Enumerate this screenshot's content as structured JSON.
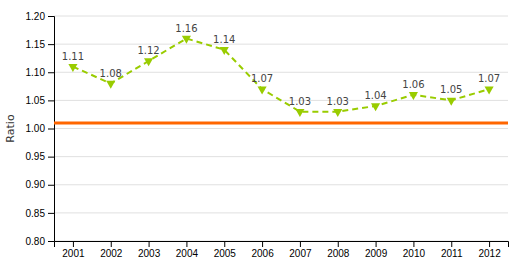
{
  "chart_data": {
    "type": "line",
    "ylabel": "Ratio",
    "x": [
      2001,
      2002,
      2003,
      2004,
      2005,
      2006,
      2007,
      2008,
      2009,
      2010,
      2011,
      2012
    ],
    "values": [
      1.11,
      1.08,
      1.12,
      1.16,
      1.14,
      1.07,
      1.03,
      1.03,
      1.04,
      1.06,
      1.05,
      1.07
    ],
    "color": "#99cc00",
    "marker": "triangle-down",
    "line_style": "dashed",
    "data_labels": true,
    "baseline": {
      "value": 1.01,
      "color": "#ff6600"
    },
    "xlim": [
      2000.5,
      2012.5
    ],
    "xticks": [
      2001,
      2002,
      2003,
      2004,
      2005,
      2006,
      2007,
      2008,
      2009,
      2010,
      2011,
      2012
    ],
    "ylim": [
      0.8,
      1.2
    ],
    "yticks": [
      {
        "value": 0.8,
        "label": "0.80"
      },
      0.85,
      {
        "value": 0.9,
        "label": "0.90"
      },
      0.95,
      {
        "value": 1.0,
        "label": "1.00"
      },
      1.05,
      {
        "value": 1.1,
        "label": "1.10"
      },
      1.15,
      {
        "value": 1.2,
        "label": "1.20"
      }
    ],
    "grid": "y"
  }
}
